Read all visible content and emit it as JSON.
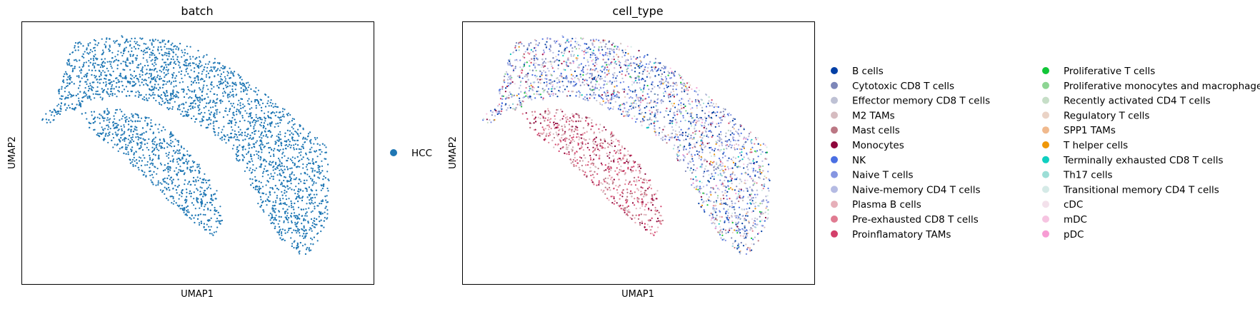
{
  "chart_data": [
    {
      "type": "scatter",
      "title": "batch",
      "xlabel": "UMAP1",
      "ylabel": "UMAP2",
      "ticks": "none",
      "legend_position": "right",
      "legend": [
        {
          "label": "HCC",
          "color": "#1f77b4"
        }
      ]
    },
    {
      "type": "scatter",
      "title": "cell_type",
      "xlabel": "UMAP1",
      "ylabel": "UMAP2",
      "ticks": "none",
      "legend_position": "right",
      "legend_columns": 2,
      "legend": [
        {
          "label": "B cells",
          "color": "#023fa5"
        },
        {
          "label": "Cytotoxic CD8 T cells",
          "color": "#7d87b9"
        },
        {
          "label": "Effector memory CD8 T cells",
          "color": "#bec1d4"
        },
        {
          "label": "M2 TAMs",
          "color": "#d6bcc0"
        },
        {
          "label": "Mast cells",
          "color": "#bb7784"
        },
        {
          "label": "Monocytes",
          "color": "#8e063b"
        },
        {
          "label": "NK",
          "color": "#4a6fe3"
        },
        {
          "label": "Naive T cells",
          "color": "#8595e1"
        },
        {
          "label": "Naive-memory CD4 T cells",
          "color": "#b5bbe3"
        },
        {
          "label": "Plasma B cells",
          "color": "#e6afb9"
        },
        {
          "label": "Pre-exhausted CD8 T cells",
          "color": "#e07b91"
        },
        {
          "label": "Proinflamatory TAMs",
          "color": "#d33f6a"
        },
        {
          "label": "Proliferative T cells",
          "color": "#11c638"
        },
        {
          "label": "Proliferative monocytes and macrophages",
          "color": "#8dd593"
        },
        {
          "label": "Recently activated CD4 T cells",
          "color": "#c6dec7"
        },
        {
          "label": "Regulatory T cells",
          "color": "#ead3c6"
        },
        {
          "label": "SPP1 TAMs",
          "color": "#f0b98d"
        },
        {
          "label": "T helper cells",
          "color": "#ef9708"
        },
        {
          "label": "Terminally exhausted CD8 T cells",
          "color": "#0fcfc0"
        },
        {
          "label": "Th17 cells",
          "color": "#9cded6"
        },
        {
          "label": "Transitional memory CD4 T cells",
          "color": "#d5eae7"
        },
        {
          "label": "cDC",
          "color": "#f3e1eb"
        },
        {
          "label": "mDC",
          "color": "#f6c4e1"
        },
        {
          "label": "pDC",
          "color": "#f79cd4"
        }
      ]
    }
  ]
}
